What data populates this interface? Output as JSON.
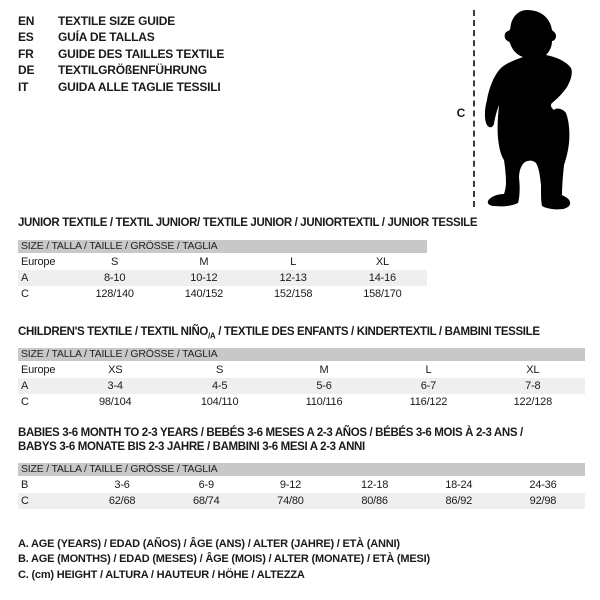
{
  "colors": {
    "header_bar": "#c8c8c8",
    "row_alt": "#efefef",
    "text": "#1a1a1a",
    "silhouette": "#000000"
  },
  "header": {
    "languages": [
      {
        "code": "EN",
        "label": "TEXTILE SIZE GUIDE"
      },
      {
        "code": "ES",
        "label": "GUÍA DE TALLAS"
      },
      {
        "code": "FR",
        "label": "GUIDE DES TAILLES TEXTILE"
      },
      {
        "code": "DE",
        "label": "TEXTILGRÖßENFÜHRUNG"
      },
      {
        "code": "IT",
        "label": "GUIDA ALLE TAGLIE TESSILI"
      }
    ]
  },
  "figure": {
    "measure_label": "C",
    "description": "standing baby silhouette with dashed height measure line"
  },
  "tables": [
    {
      "title": "JUNIOR TEXTILE / TEXTIL JUNIOR/ TEXTILE JUNIOR / JUNIORTEXTIL / JUNIOR TESSILE",
      "size_header": "SIZE / TALLA / TAILLE / GRÖSSE / TAGLIA",
      "rows": [
        {
          "label": "Europe",
          "values": [
            "S",
            "M",
            "L",
            "XL"
          ]
        },
        {
          "label": "A",
          "values": [
            "8-10",
            "10-12",
            "12-13",
            "14-16"
          ]
        },
        {
          "label": "C",
          "values": [
            "128/140",
            "140/152",
            "152/158",
            "158/170"
          ]
        }
      ]
    },
    {
      "title_parts": {
        "before": "CHILDREN'S TEXTILE / TEXTIL NIÑO",
        "sub": "/A",
        "after": " / TEXTILE DES ENFANTS / KINDERTEXTIL / BAMBINI TESSILE"
      },
      "size_header": "SIZE / TALLA / TAILLE / GRÖSSE / TAGLIA",
      "rows": [
        {
          "label": "Europe",
          "values": [
            "XS",
            "S",
            "M",
            "L",
            "XL"
          ]
        },
        {
          "label": "A",
          "values": [
            "3-4",
            "4-5",
            "5-6",
            "6-7",
            "7-8"
          ]
        },
        {
          "label": "C",
          "values": [
            "98/104",
            "104/110",
            "110/116",
            "116/122",
            "122/128"
          ]
        }
      ]
    },
    {
      "title_lines": [
        "BABIES 3-6 MONTH TO 2-3 YEARS / BEBÉS 3-6 MESES A 2-3 AÑOS / BÉBÉS 3-6 MOIS À 2-3 ANS /",
        "BABYS 3-6 MONATE BIS 2-3 JAHRE / BAMBINI 3-6 MESI A 2-3 ANNI"
      ],
      "size_header": "SIZE / TALLA / TAILLE / GRÖSSE / TAGLIA",
      "rows": [
        {
          "label": "B",
          "values": [
            "3-6",
            "6-9",
            "9-12",
            "12-18",
            "18-24",
            "24-36"
          ]
        },
        {
          "label": "C",
          "values": [
            "62/68",
            "68/74",
            "74/80",
            "80/86",
            "86/92",
            "92/98"
          ]
        }
      ]
    }
  ],
  "footnotes": [
    "A. AGE (YEARS) / EDAD (AÑOS) / ÂGE (ANS) / ALTER (JAHRE) / ETÀ (ANNI)",
    "B. AGE (MONTHS) / EDAD (MESES) / ÂGE (MOIS) / ALTER (MONATE) / ETÀ (MESI)",
    "C. (cm) HEIGHT / ALTURA / HAUTEUR / HÖHE / ALTEZZA"
  ]
}
